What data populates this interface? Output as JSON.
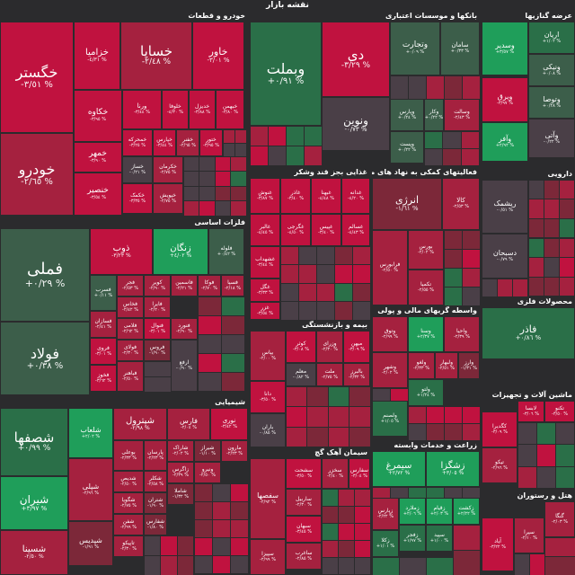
{
  "header": {
    "title": "نقشه بازار"
  },
  "colors": {
    "background": "#2b2b2d",
    "strong_red": "#c0123f",
    "red": "#a5213f",
    "dark_red": "#7c2839",
    "neutral": "#4a3f47",
    "green": "#1f9e5a",
    "dark_green": "#2a6f48",
    "muted_green": "#3c5e4a"
  },
  "sectors": [
    {
      "key": "auto",
      "label": "خودرو و قطعات"
    },
    {
      "key": "banks",
      "label": "بانکها و موسسات اعتباری"
    },
    {
      "key": "invest",
      "label": "عرضه گنازیها"
    },
    {
      "key": "fin",
      "label": "فعالیتهای کمکی به نهاد های مالی"
    },
    {
      "key": "food",
      "label": "غذایی بجز قند وشکر"
    },
    {
      "key": "pharma",
      "label": "دارویی"
    },
    {
      "key": "metals",
      "label": "فلزات اساسی"
    },
    {
      "key": "insurance",
      "label": "بیمه و بازنشستگی"
    },
    {
      "key": "mining",
      "label": "محصولات فلزی"
    },
    {
      "key": "finance2",
      "label": "واسطه گریهای مالی و پولی"
    },
    {
      "key": "chem",
      "label": "شیمیایی"
    },
    {
      "key": "machinery",
      "label": "ماشین آلات و تجهیزات"
    },
    {
      "key": "cement",
      "label": "سیمان آهک گچ"
    },
    {
      "key": "agri",
      "label": "زراعت و خدمات وابسته"
    },
    {
      "key": "hotel",
      "label": "هتل و رستوران"
    }
  ],
  "tiles": [
    {
      "name": "خگستر",
      "pct": "-٣/٥١ %"
    },
    {
      "name": "خودرو",
      "pct": "-٢/٦٥ %"
    },
    {
      "name": "خزامیا",
      "pct": "-٤/٣١ %"
    },
    {
      "name": "خساپا",
      "pct": "-٢/٤٨ %"
    },
    {
      "name": "خاور",
      "pct": "-٣/٠١ %"
    },
    {
      "name": "خکاوه",
      "pct": "-٣/٩٥ %"
    },
    {
      "name": "ورنا",
      "pct": "-٣/٤٤ %"
    },
    {
      "name": "خلوفا",
      "pct": "-٤/٣٠ %"
    },
    {
      "name": "خدیزل",
      "pct": "-٣/٨٨ %"
    },
    {
      "name": "خبهمن",
      "pct": "-٣/٨٠ %"
    },
    {
      "name": "خمحرکه",
      "pct": "-٣/٢٥ %"
    },
    {
      "name": "خپارس",
      "pct": "-٣/٤٤ %"
    },
    {
      "name": "خفنر",
      "pct": "-٢/٦٥ %"
    },
    {
      "name": "ختور",
      "pct": "-٣/٩٥ %"
    },
    {
      "name": "خمهر",
      "pct": "-٣/٩٠ %"
    },
    {
      "name": "خساز",
      "pct": "-٠/٢١ %"
    },
    {
      "name": "خشرق",
      "pct": "-٣/٠٢ %"
    },
    {
      "name": "خکرمان",
      "pct": "-٢/٧٥ %"
    },
    {
      "name": "خنصیر",
      "pct": "-٣/٥٤ %"
    },
    {
      "name": "خکمک",
      "pct": "-٣/٣٥ %"
    },
    {
      "name": "خپویش",
      "pct": "-٢/٧٥ %"
    },
    {
      "name": "دی",
      "pct": "-٣/٢٩ %"
    },
    {
      "name": "وبملت",
      "pct": "+٠/٩١ %"
    },
    {
      "name": "ونوین",
      "pct": "-٠/٧٣ %"
    },
    {
      "name": "وتجارت",
      "pct": "+٠/٠٩ %"
    },
    {
      "name": "سامان",
      "pct": "+٠/٣٣ %"
    },
    {
      "name": "وپارس",
      "pct": "+٠/٢٤ %"
    },
    {
      "name": "وکار",
      "pct": "+٠/٢٢ %"
    },
    {
      "name": "وسالت",
      "pct": "-٢/٤٣ %"
    },
    {
      "name": "وپست",
      "pct": "+٠/٢٢ %"
    },
    {
      "name": "اریان",
      "pct": "+١/٠٢ %"
    },
    {
      "name": "وسدیر",
      "pct": "+٣/٥٧ %"
    },
    {
      "name": "ونیکی",
      "pct": "+٠/٠٨ %"
    },
    {
      "name": "وتوصا",
      "pct": "+٠/٢٨ %"
    },
    {
      "name": "ویرق",
      "pct": "-٣/٩٧ %"
    },
    {
      "name": "وآفر",
      "pct": "+٢/٩٢ %"
    },
    {
      "name": "وآتی",
      "pct": "-٠/٢٢ %"
    },
    {
      "name": "انرژی",
      "pct": "-١/٦١ %"
    },
    {
      "name": "کالا",
      "pct": "-٢/٥٣ %"
    },
    {
      "name": "بورس",
      "pct": "-٢/٠٢ %"
    },
    {
      "name": "فرابورس",
      "pct": "-٢/٥٠ %"
    },
    {
      "name": "تکمیا",
      "pct": "-٢/٥٥ %"
    },
    {
      "name": "غنوش",
      "pct": "-٣/٨٧ %"
    },
    {
      "name": "غاذر",
      "pct": "-٣/٤٠ %"
    },
    {
      "name": "غبهنا",
      "pct": "-٤/٤٨ %"
    },
    {
      "name": "غدانه",
      "pct": "-٤/٢٠ %"
    },
    {
      "name": "غالبر",
      "pct": "-٤/٤٥ %"
    },
    {
      "name": "غگرجی",
      "pct": "-٤/٥٠ %"
    },
    {
      "name": "غپیس",
      "pct": "-٣/٤٠ %"
    },
    {
      "name": "غسالم",
      "pct": "-٤/٤٣ %"
    },
    {
      "name": "غشهداب",
      "pct": "-٣/٤٤ %"
    },
    {
      "name": "غگل",
      "pct": "-٣/٣٣ %"
    },
    {
      "name": "غزر",
      "pct": "-٣/٥٤ %"
    },
    {
      "name": "ریشمک",
      "pct": "-٠/٥١ %"
    },
    {
      "name": "دسبحان",
      "pct": "-٠/٧٩ %"
    },
    {
      "name": "فملی",
      "pct": "+٠/٢٩ %"
    },
    {
      "name": "فولاد",
      "pct": "+٠/٣٨ %"
    },
    {
      "name": "ذوب",
      "pct": "-٣/٢٣ %"
    },
    {
      "name": "زنگان",
      "pct": "+٤/٠٢ %"
    },
    {
      "name": "فلوله",
      "pct": "+٠/٤٢ %"
    },
    {
      "name": "کویر",
      "pct": "-٢/٩٠ %"
    },
    {
      "name": "فاسمین",
      "pct": "-٢/٢١ %"
    },
    {
      "name": "فوکا",
      "pct": "-٢/٧٠ %"
    },
    {
      "name": "فسپا",
      "pct": "-٢/١٨ %"
    },
    {
      "name": "فسرب",
      "pct": "+٠/١١ %"
    },
    {
      "name": "فجر",
      "pct": "-٢/٥٣ %"
    },
    {
      "name": "فسازان",
      "pct": "-٢/٤١ %"
    },
    {
      "name": "فایرا",
      "pct": "-٢/٢٠ %"
    },
    {
      "name": "فخاس",
      "pct": "-٢/٤٢ %"
    },
    {
      "name": "فروی",
      "pct": "-٣/٠١ %"
    },
    {
      "name": "فنورد",
      "pct": "-٢/٩٠ %"
    },
    {
      "name": "فنوال",
      "pct": "-٣/٠١ %"
    },
    {
      "name": "فخوز",
      "pct": "-٣/٦٢ %"
    },
    {
      "name": "فلامی",
      "pct": "-٢/٦٢ %"
    },
    {
      "name": "فولای",
      "pct": "-٢/٣٠ %"
    },
    {
      "name": "فروس",
      "pct": "-١/٩٠ %"
    },
    {
      "name": "فباهنر",
      "pct": "-٢/٥٠ %"
    },
    {
      "name": "ارفع",
      "pct": "-٠/٩٠ %"
    },
    {
      "name": "کوثر",
      "pct": "-٣/٠٨ %"
    },
    {
      "name": "وزرای",
      "pct": "-٢/٣٠ %"
    },
    {
      "name": "میهن",
      "pct": "-٣/٠٩ %"
    },
    {
      "name": "بپاس",
      "pct": "-٢/٠٠ %"
    },
    {
      "name": "ملت",
      "pct": "-٢/٧٥ %"
    },
    {
      "name": "معلم",
      "pct": "-٠/٨٢ %"
    },
    {
      "name": "دانا",
      "pct": "-٣/٥٠ %"
    },
    {
      "name": "بالبرز",
      "pct": "-٢/٣٢ %"
    },
    {
      "name": "باران",
      "pct": "-٠/٨٥ %"
    },
    {
      "name": "فاذر",
      "pct": "+٠/٨٦ %"
    },
    {
      "name": "فارک",
      "pct": "-٢/٩١ %"
    },
    {
      "name": "فما",
      "pct": "+٠/٥١ %"
    },
    {
      "name": "وتوق",
      "pct": "-٢/٩٩ %"
    },
    {
      "name": "وسنا",
      "pct": "+٢/٣٧ %"
    },
    {
      "name": "واحیا",
      "pct": "-٢/٣٩ %"
    },
    {
      "name": "وشهر",
      "pct": "-٢/٠٢ %"
    },
    {
      "name": "ولغو",
      "pct": "-٢/٣٣ %"
    },
    {
      "name": "ولبهار",
      "pct": "-٢/٥١ %"
    },
    {
      "name": "وارز",
      "pct": "-١/٣١ %"
    },
    {
      "name": "ولصنم",
      "pct": "+١/٠٥ %"
    },
    {
      "name": "ولتو",
      "pct": "+١/٢٤ %"
    },
    {
      "name": "شصفها",
      "pct": "+٠/٩٩ %"
    },
    {
      "name": "شیران",
      "pct": "+٣/٩٧ %"
    },
    {
      "name": "شسینا",
      "pct": "-٢/٥٠ %"
    },
    {
      "name": "شلعاب",
      "pct": "+٢/٠٢ %"
    },
    {
      "name": "شپلی",
      "pct": "-٢/٩٦ %"
    },
    {
      "name": "شپترول",
      "pct": "-٢/٩٨ %"
    },
    {
      "name": "بوعلی",
      "pct": "-٢/٣٣ %"
    },
    {
      "name": "فارس",
      "pct": "-٢/٠٤ %"
    },
    {
      "name": "نوری",
      "pct": "-٣/٤٢ %"
    },
    {
      "name": "شاراک",
      "pct": "-٢/٠٢ %"
    },
    {
      "name": "پارسان",
      "pct": "-٢/٢٣ %"
    },
    {
      "name": "شیراز",
      "pct": "-١/١٠ %"
    },
    {
      "name": "مارون",
      "pct": "-٢/٢٣ %"
    },
    {
      "name": "شدیص",
      "pct": "-٢/٥٠ %"
    },
    {
      "name": "شکلر",
      "pct": "-٢/٥٨ %"
    },
    {
      "name": "زاگرس",
      "pct": "-٢/٣٩ %"
    },
    {
      "name": "ونیرو",
      "pct": "-٢/٥٠ %"
    },
    {
      "name": "شگویا",
      "pct": "-٢/٧٥ %"
    },
    {
      "name": "شفن",
      "pct": "-٢/٩٩ %"
    },
    {
      "name": "شتران",
      "pct": "-١/٩٠ %"
    },
    {
      "name": "تاپیکو",
      "pct": "-٢/٣٠ %"
    },
    {
      "name": "شپدیس",
      "pct": "-١/٩١ %"
    },
    {
      "name": "شفارس",
      "pct": "-١/٨٠ %"
    },
    {
      "name": "شاملا",
      "pct": "-١/٣٢ %"
    },
    {
      "name": "سفصها",
      "pct": "-٢/٩٢ %"
    },
    {
      "name": "سشحت",
      "pct": "-٣/٥٠ %"
    },
    {
      "name": "سخزر",
      "pct": "-٢/٤٠ %"
    },
    {
      "name": "سفارس",
      "pct": "-٣/٠٤ %"
    },
    {
      "name": "ساربیل",
      "pct": "-٢/٣٠ %"
    },
    {
      "name": "سپیزا",
      "pct": "-٢/٩٩ %"
    },
    {
      "name": "سبهان",
      "pct": "-٣/٤٥ %"
    },
    {
      "name": "ساغرب",
      "pct": "-٢/٨٥ %"
    },
    {
      "name": "سیمرغ",
      "pct": "+٢/٧٢ %"
    },
    {
      "name": "زشگزا",
      "pct": "+٣/٠٥ %"
    },
    {
      "name": "زقیام",
      "pct": "+٢/٠٣ %"
    },
    {
      "name": "زملارد",
      "pct": "+٢/٠٦ %"
    },
    {
      "name": "زکشت",
      "pct": "+٢/٢٢ %"
    },
    {
      "name": "زپارس",
      "pct": "-٢/٢٢ %"
    },
    {
      "name": "زفجر",
      "pct": "+١/٩٧ %"
    },
    {
      "name": "زکلا",
      "pct": "+١/٠١ %"
    },
    {
      "name": "سپید",
      "pct": "+١/٠٠ %"
    },
    {
      "name": "کگدیرا",
      "pct": "-٣/٠٩ %"
    },
    {
      "name": "لابسا",
      "pct": "-٣/٠٦ %"
    },
    {
      "name": "تکنو",
      "pct": "-٣/٥٠ %"
    },
    {
      "name": "تیکو",
      "pct": "-٢/٩٦ %"
    },
    {
      "name": "آیاد",
      "pct": "-٣/٢٢ %"
    },
    {
      "name": "گنگا",
      "pct": "-٢/٠٣ %"
    },
    {
      "name": "سپرا",
      "pct": "-٢/١٠ %"
    }
  ]
}
